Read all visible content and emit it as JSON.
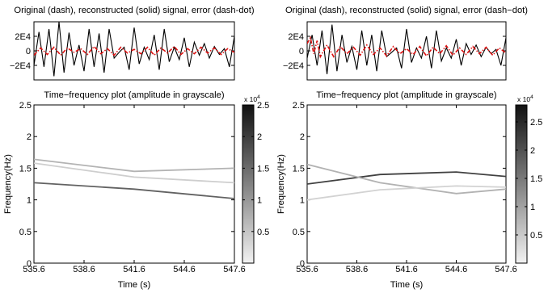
{
  "chart_data": [
    {
      "panel": "left-top",
      "type": "line",
      "title": "Original (dash), reconstructed (solid) signal, error (dash-dot)",
      "xlim": [
        535.6,
        547.6
      ],
      "ylim": [
        -40000,
        40000
      ],
      "ytick_values": [
        -20000,
        0,
        20000
      ],
      "yticks": [
        "−2E4",
        "0",
        "2E4"
      ],
      "series": [
        {
          "style": "solid",
          "color": "#000000",
          "x": [
            535.6,
            535.9,
            536.2,
            536.5,
            536.8,
            537.1,
            537.4,
            537.7,
            538.0,
            538.3,
            538.6,
            538.9,
            539.2,
            539.5,
            539.8,
            540.1,
            540.4,
            540.7,
            541.0,
            541.3,
            541.6,
            541.9,
            542.2,
            542.5,
            542.8,
            543.1,
            543.4,
            543.7,
            544.0,
            544.3,
            544.6,
            544.9,
            545.2,
            545.5,
            545.8,
            546.1,
            546.4,
            546.7,
            547.0,
            547.3,
            547.6
          ],
          "y": [
            -20000,
            26000,
            -22000,
            30000,
            -35000,
            40000,
            -30000,
            25000,
            -20000,
            8000,
            -28000,
            30000,
            -22000,
            24000,
            -30000,
            30000,
            -10000,
            -2000,
            5000,
            -26000,
            32000,
            -18000,
            5000,
            -12000,
            22000,
            -26000,
            30000,
            -15000,
            5000,
            -12000,
            18000,
            -22000,
            12000,
            -6000,
            10000,
            -10000,
            6000,
            -5000,
            3000,
            -22000,
            20000
          ]
        },
        {
          "style": "dash-dot",
          "color": "#dd1111",
          "x": [
            535.6,
            536.0,
            536.4,
            536.8,
            537.2,
            537.6,
            538.0,
            538.4,
            538.8,
            539.2,
            539.6,
            540.0,
            540.4,
            540.8,
            541.2,
            541.6,
            542.0,
            542.4,
            542.8,
            543.2,
            543.6,
            544.0,
            544.4,
            544.8,
            545.2,
            545.6,
            546.0,
            546.4,
            546.8,
            547.2,
            547.6
          ],
          "y": [
            -6000,
            4000,
            -5000,
            5000,
            -6000,
            4000,
            -2000,
            3000,
            -5000,
            6000,
            -4000,
            3000,
            -6000,
            5000,
            -3000,
            2000,
            -4000,
            5000,
            -6000,
            4000,
            -3000,
            6000,
            -5000,
            3000,
            -4000,
            5000,
            -3000,
            4000,
            -5000,
            3000,
            -2000
          ]
        }
      ]
    },
    {
      "panel": "left-bottom",
      "type": "line",
      "title": "Time−frequency plot (amplitude in grayscale)",
      "xlabel": "Time (s)",
      "ylabel": "Frequency(Hz)",
      "xlim": [
        535.6,
        547.6
      ],
      "ylim": [
        0,
        2.5
      ],
      "xticks": [
        535.6,
        538.6,
        541.6,
        544.6,
        547.6
      ],
      "yticks": [
        0,
        0.5,
        1,
        1.5,
        2,
        2.5
      ],
      "colorbar": {
        "min": 0,
        "max": 25000,
        "ticks": [
          0.5,
          1,
          1.5,
          2,
          2.5
        ],
        "multiplier": "x 10",
        "exponent": "4"
      },
      "series": [
        {
          "x": [
            535.6,
            541.6,
            547.6
          ],
          "y": [
            1.64,
            1.45,
            1.5
          ],
          "amplitude": 7000
        },
        {
          "x": [
            535.6,
            541.6,
            547.6
          ],
          "y": [
            1.58,
            1.36,
            1.27
          ],
          "amplitude": 4000
        },
        {
          "x": [
            535.6,
            541.6,
            547.6
          ],
          "y": [
            1.27,
            1.17,
            1.02
          ],
          "amplitude": 16000
        }
      ]
    },
    {
      "panel": "right-top",
      "type": "line",
      "title": "Original (dash), reconstructed (solid) signal, error (dash−dot)",
      "xlim": [
        535.6,
        547.6
      ],
      "ylim": [
        -40000,
        40000
      ],
      "ytick_values": [
        -20000,
        0,
        20000
      ],
      "yticks": [
        "−2E4",
        "0",
        "2E4"
      ],
      "series": [
        {
          "style": "solid",
          "color": "#000000",
          "x": [
            535.6,
            535.9,
            536.2,
            536.5,
            536.8,
            537.1,
            537.4,
            537.7,
            538.0,
            538.3,
            538.6,
            538.9,
            539.2,
            539.5,
            539.8,
            540.1,
            540.4,
            540.7,
            541.0,
            541.3,
            541.6,
            541.9,
            542.2,
            542.5,
            542.8,
            543.1,
            543.4,
            543.7,
            544.0,
            544.3,
            544.6,
            544.9,
            545.2,
            545.5,
            545.8,
            546.1,
            546.4,
            546.7,
            547.0,
            547.3,
            547.6
          ],
          "y": [
            -10000,
            22000,
            -20000,
            28000,
            -32000,
            36000,
            -28000,
            22000,
            -16000,
            6000,
            -26000,
            28000,
            -20000,
            22000,
            -28000,
            28000,
            -8000,
            -2000,
            4000,
            -24000,
            30000,
            -16000,
            4000,
            -10000,
            20000,
            -24000,
            28000,
            -14000,
            4000,
            -10000,
            16000,
            -20000,
            10000,
            -5000,
            8000,
            -8000,
            5000,
            -4000,
            2000,
            -20000,
            18000
          ]
        },
        {
          "style": "dash-dot",
          "color": "#dd1111",
          "x": [
            535.6,
            535.8,
            536.0,
            536.2,
            536.4,
            536.8,
            537.2,
            537.6,
            538.0,
            538.4,
            538.8,
            539.2,
            539.6,
            540.0,
            540.4,
            540.8,
            541.2,
            541.6,
            542.0,
            542.4,
            542.8,
            543.2,
            543.6,
            544.0,
            544.4,
            544.8,
            545.2,
            545.6,
            546.0,
            546.4,
            546.8,
            547.2,
            547.6
          ],
          "y": [
            10000,
            18000,
            -4000,
            14000,
            -8000,
            8000,
            -8000,
            6000,
            -4000,
            5000,
            -6000,
            8000,
            -5000,
            4000,
            -7000,
            6000,
            -4000,
            3000,
            -5000,
            6000,
            -7000,
            5000,
            -4000,
            7000,
            -6000,
            4000,
            -5000,
            6000,
            -4000,
            5000,
            -6000,
            4000,
            -3000
          ]
        }
      ]
    },
    {
      "panel": "right-bottom",
      "type": "line",
      "title": "Time−frequency plot (amplitude in grayscale)",
      "xlabel": "Time (s)",
      "ylabel": "Frequency(Hz)",
      "xlim": [
        535.6,
        547.6
      ],
      "ylim": [
        0,
        2.5
      ],
      "xticks": [
        535.6,
        538.6,
        541.6,
        544.6,
        547.6
      ],
      "yticks": [
        0,
        0.5,
        1,
        1.5,
        2,
        2.5
      ],
      "colorbar": {
        "min": 0,
        "max": 28000,
        "ticks": [
          0.5,
          1,
          1.5,
          2,
          2.5
        ],
        "multiplier": "x 10",
        "exponent": "4"
      },
      "series": [
        {
          "x": [
            535.6,
            540.0,
            544.6,
            547.6
          ],
          "y": [
            1.25,
            1.4,
            1.44,
            1.37
          ],
          "amplitude": 22000
        },
        {
          "x": [
            535.6,
            540.0,
            544.6,
            547.6
          ],
          "y": [
            1.56,
            1.27,
            1.1,
            1.17
          ],
          "amplitude": 8000
        },
        {
          "x": [
            535.6,
            540.0,
            544.6,
            547.6
          ],
          "y": [
            1.0,
            1.16,
            1.22,
            1.2
          ],
          "amplitude": 4000
        }
      ]
    }
  ]
}
